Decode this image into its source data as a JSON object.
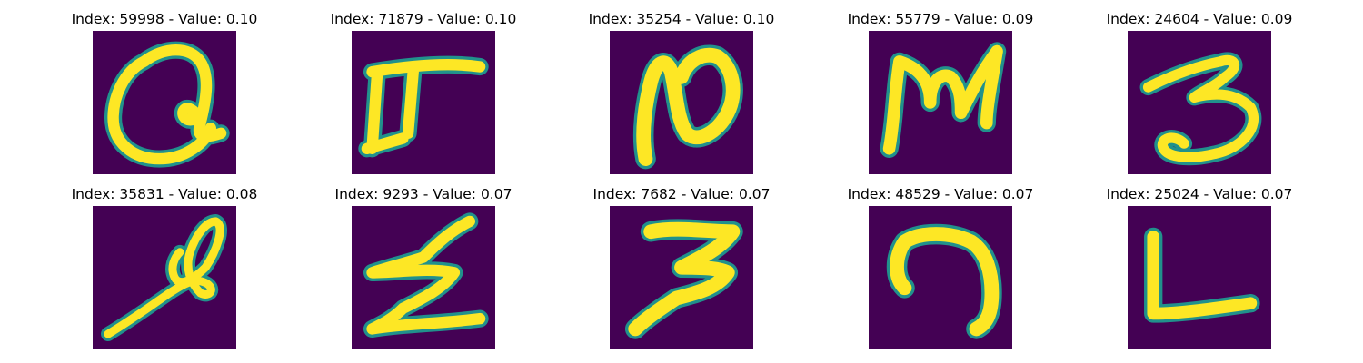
{
  "colors": {
    "background": "#440154",
    "stroke_core": "#fde725",
    "stroke_mid": "#5ec962",
    "stroke_edge": "#21918c"
  },
  "panels": [
    {
      "title": "Index: 59998 - Value: 0.10",
      "glyph": "q-loop"
    },
    {
      "title": "Index: 71879 - Value: 0.10",
      "glyph": "pi-like"
    },
    {
      "title": "Index: 35254 - Value: 0.10",
      "glyph": "n-curl"
    },
    {
      "title": "Index: 55779 - Value: 0.09",
      "glyph": "m-shape"
    },
    {
      "title": "Index: 24604 - Value: 0.09",
      "glyph": "three"
    },
    {
      "title": "Index: 35831 - Value: 0.08",
      "glyph": "loop-slash"
    },
    {
      "title": "Index: 9293 - Value: 0.07",
      "glyph": "z-zigzag"
    },
    {
      "title": "Index: 7682 - Value: 0.07",
      "glyph": "three-z"
    },
    {
      "title": "Index: 48529 - Value: 0.07",
      "glyph": "hook"
    },
    {
      "title": "Index: 25024 - Value: 0.07",
      "glyph": "l-shape"
    }
  ]
}
